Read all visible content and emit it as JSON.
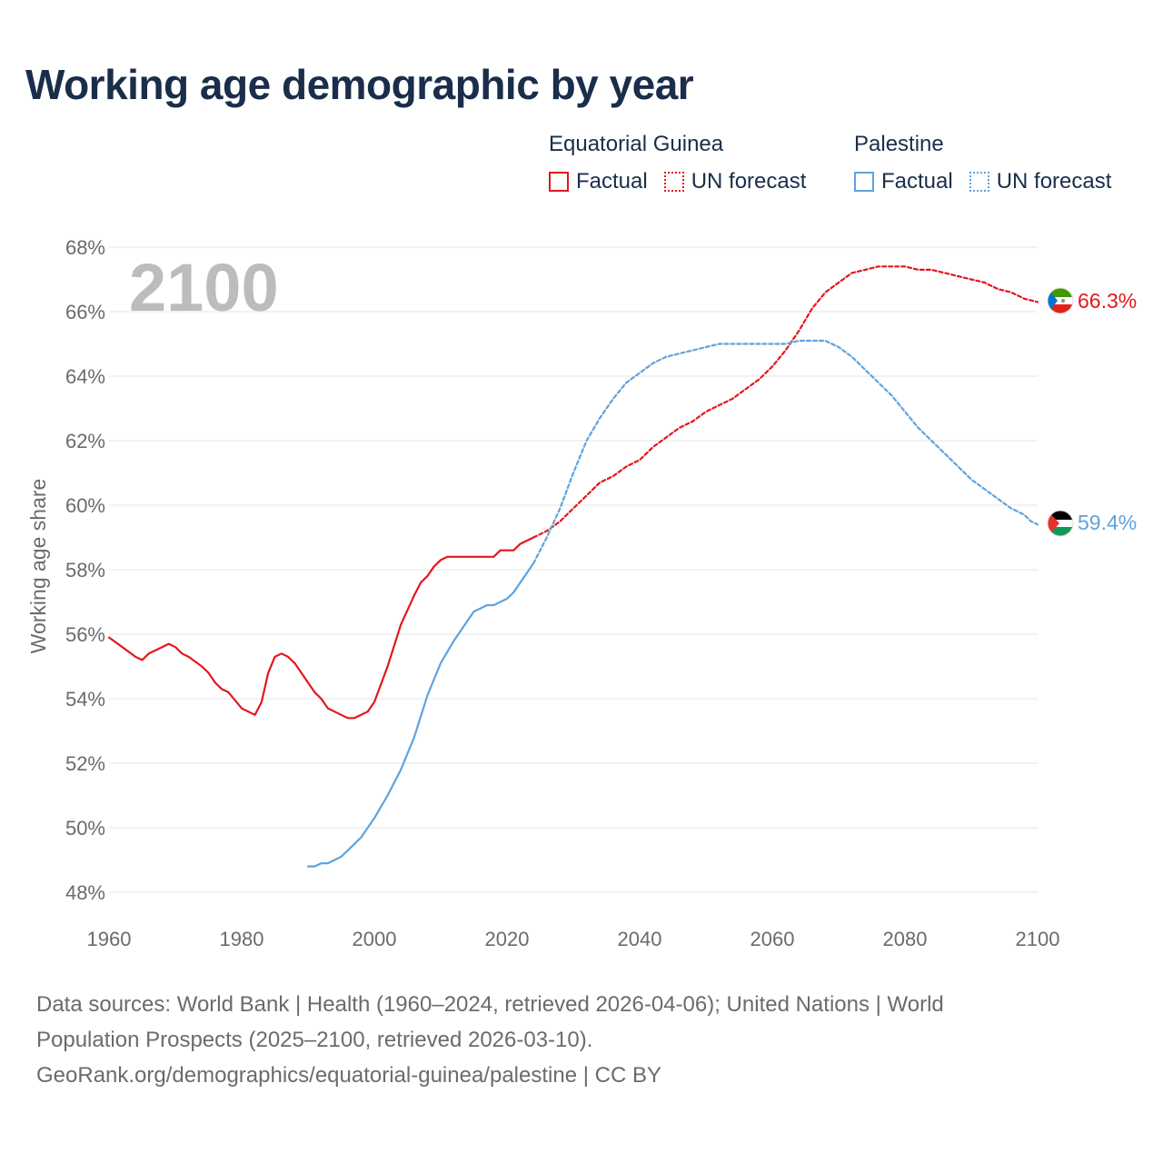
{
  "title": "Working age demographic by year",
  "legend": {
    "groups": [
      {
        "name": "Equatorial Guinea",
        "factual_label": "Factual",
        "forecast_label": "UN forecast",
        "color": "#e3171d"
      },
      {
        "name": "Palestine",
        "factual_label": "Factual",
        "forecast_label": "UN forecast",
        "color": "#5ea3e0"
      }
    ]
  },
  "chart_data": {
    "type": "line",
    "title": "Working age demographic by year",
    "xlabel": "",
    "ylabel": "Working age share",
    "xlim": [
      1960,
      2100
    ],
    "ylim": [
      48,
      68
    ],
    "x_ticks": [
      1960,
      1980,
      2000,
      2020,
      2040,
      2060,
      2080,
      2100
    ],
    "x_tick_labels": [
      "1960",
      "1980",
      "2000",
      "2020",
      "2040",
      "2060",
      "2080",
      "2100"
    ],
    "y_ticks": [
      48,
      50,
      52,
      54,
      56,
      58,
      60,
      62,
      64,
      66,
      68
    ],
    "y_tick_labels": [
      "48%",
      "50%",
      "52%",
      "54%",
      "56%",
      "58%",
      "60%",
      "62%",
      "64%",
      "66%",
      "68%"
    ],
    "year_overlay": "2100",
    "grid": true,
    "series": [
      {
        "name": "Equatorial Guinea",
        "kind": "Factual",
        "color": "#e3171d",
        "x": [
          1960,
          1962,
          1964,
          1965,
          1966,
          1968,
          1969,
          1970,
          1971,
          1972,
          1974,
          1975,
          1976,
          1977,
          1978,
          1980,
          1982,
          1983,
          1984,
          1985,
          1986,
          1987,
          1988,
          1990,
          1991,
          1992,
          1993,
          1994,
          1996,
          1997,
          1998,
          1999,
          2000,
          2002,
          2004,
          2006,
          2007,
          2008,
          2009,
          2010,
          2011,
          2012,
          2014,
          2016,
          2018,
          2019,
          2021,
          2022,
          2024
        ],
        "y": [
          55.9,
          55.6,
          55.3,
          55.2,
          55.4,
          55.6,
          55.7,
          55.6,
          55.4,
          55.3,
          55.0,
          54.8,
          54.5,
          54.3,
          54.2,
          53.7,
          53.5,
          53.9,
          54.8,
          55.3,
          55.4,
          55.3,
          55.1,
          54.5,
          54.2,
          54.0,
          53.7,
          53.6,
          53.4,
          53.4,
          53.5,
          53.6,
          53.9,
          55.0,
          56.3,
          57.2,
          57.6,
          57.8,
          58.1,
          58.3,
          58.4,
          58.4,
          58.4,
          58.4,
          58.4,
          58.6,
          58.6,
          58.8,
          59.0
        ]
      },
      {
        "name": "Equatorial Guinea",
        "kind": "UN forecast",
        "color": "#e3171d",
        "x": [
          2024,
          2026,
          2028,
          2030,
          2032,
          2034,
          2036,
          2038,
          2040,
          2042,
          2044,
          2046,
          2048,
          2050,
          2052,
          2054,
          2056,
          2058,
          2060,
          2062,
          2064,
          2066,
          2068,
          2070,
          2072,
          2074,
          2076,
          2078,
          2080,
          2082,
          2084,
          2086,
          2088,
          2090,
          2092,
          2094,
          2096,
          2098,
          2100
        ],
        "y": [
          59.0,
          59.2,
          59.5,
          59.9,
          60.3,
          60.7,
          60.9,
          61.2,
          61.4,
          61.8,
          62.1,
          62.4,
          62.6,
          62.9,
          63.1,
          63.3,
          63.6,
          63.9,
          64.3,
          64.8,
          65.4,
          66.1,
          66.6,
          66.9,
          67.2,
          67.3,
          67.4,
          67.4,
          67.4,
          67.3,
          67.3,
          67.2,
          67.1,
          67.0,
          66.9,
          66.7,
          66.6,
          66.4,
          66.3
        ]
      },
      {
        "name": "Palestine",
        "kind": "Factual",
        "color": "#5ea3e0",
        "x": [
          1990,
          1991,
          1992,
          1993,
          1994,
          1995,
          1996,
          1997,
          1998,
          2000,
          2002,
          2004,
          2006,
          2008,
          2010,
          2012,
          2014,
          2015,
          2016,
          2017,
          2018,
          2019,
          2020,
          2021,
          2022,
          2023,
          2024
        ],
        "y": [
          48.8,
          48.8,
          48.9,
          48.9,
          49.0,
          49.1,
          49.3,
          49.5,
          49.7,
          50.3,
          51.0,
          51.8,
          52.8,
          54.1,
          55.1,
          55.8,
          56.4,
          56.7,
          56.8,
          56.9,
          56.9,
          57.0,
          57.1,
          57.3,
          57.6,
          57.9,
          58.2
        ]
      },
      {
        "name": "Palestine",
        "kind": "UN forecast",
        "color": "#5ea3e0",
        "x": [
          2024,
          2026,
          2028,
          2030,
          2032,
          2034,
          2036,
          2038,
          2040,
          2042,
          2044,
          2046,
          2048,
          2050,
          2052,
          2054,
          2056,
          2058,
          2060,
          2062,
          2064,
          2066,
          2068,
          2070,
          2072,
          2074,
          2076,
          2078,
          2080,
          2082,
          2084,
          2086,
          2088,
          2090,
          2092,
          2094,
          2096,
          2098,
          2099,
          2100
        ],
        "y": [
          58.2,
          59.0,
          59.9,
          61.0,
          62.0,
          62.7,
          63.3,
          63.8,
          64.1,
          64.4,
          64.6,
          64.7,
          64.8,
          64.9,
          65.0,
          65.0,
          65.0,
          65.0,
          65.0,
          65.0,
          65.1,
          65.1,
          65.1,
          64.9,
          64.6,
          64.2,
          63.8,
          63.4,
          62.9,
          62.4,
          62.0,
          61.6,
          61.2,
          60.8,
          60.5,
          60.2,
          59.9,
          59.7,
          59.5,
          59.4
        ]
      }
    ],
    "end_labels": [
      {
        "country": "Equatorial Guinea",
        "text": "66.3%",
        "value": 66.3,
        "color": "#e3171d"
      },
      {
        "country": "Palestine",
        "text": "59.4%",
        "value": 59.4,
        "color": "#5ea3e0"
      }
    ]
  },
  "footer": {
    "line1": "Data sources: World Bank | Health (1960–2024, retrieved 2026-04-06); United Nations | World",
    "line2": "Population Prospects (2025–2100, retrieved 2026-03-10).",
    "line3": "GeoRank.org/demographics/equatorial-guinea/palestine | CC BY"
  }
}
